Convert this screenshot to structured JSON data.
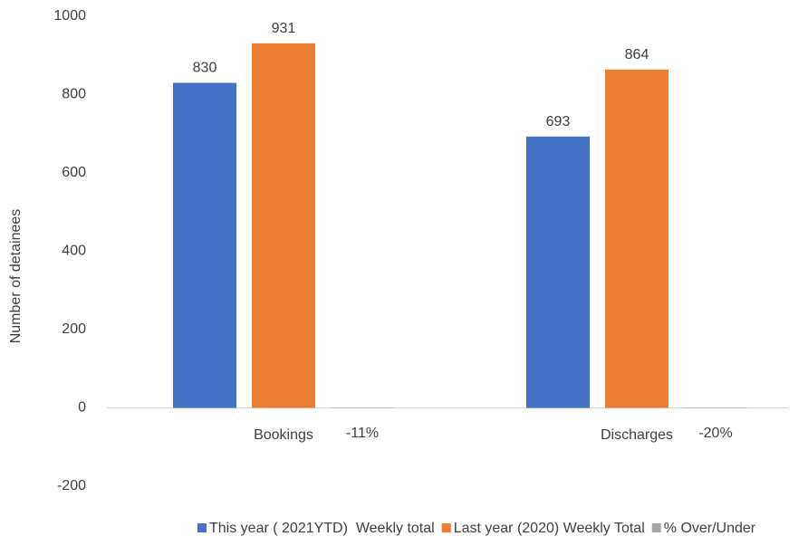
{
  "chart_data": {
    "type": "bar",
    "y_label": "Number of detainees",
    "categories": [
      "Bookings",
      "Discharges"
    ],
    "series": [
      {
        "name": "This year ( 2021YTD)  Weekly total",
        "color": "#4472c4",
        "values": [
          830,
          693
        ]
      },
      {
        "name": "Last year (2020) Weekly Total",
        "color": "#ed7d31",
        "values": [
          931,
          864
        ]
      },
      {
        "name": "% Over/Under",
        "color": "#a5a5a5",
        "values": [
          -0.11,
          -0.2
        ],
        "value_labels": [
          "-11%",
          "-20%"
        ]
      }
    ],
    "ylim": [
      -200,
      1000
    ],
    "yticks": [
      -200,
      0,
      200,
      400,
      600,
      800,
      1000
    ],
    "grid": false,
    "legend": "bottom"
  }
}
